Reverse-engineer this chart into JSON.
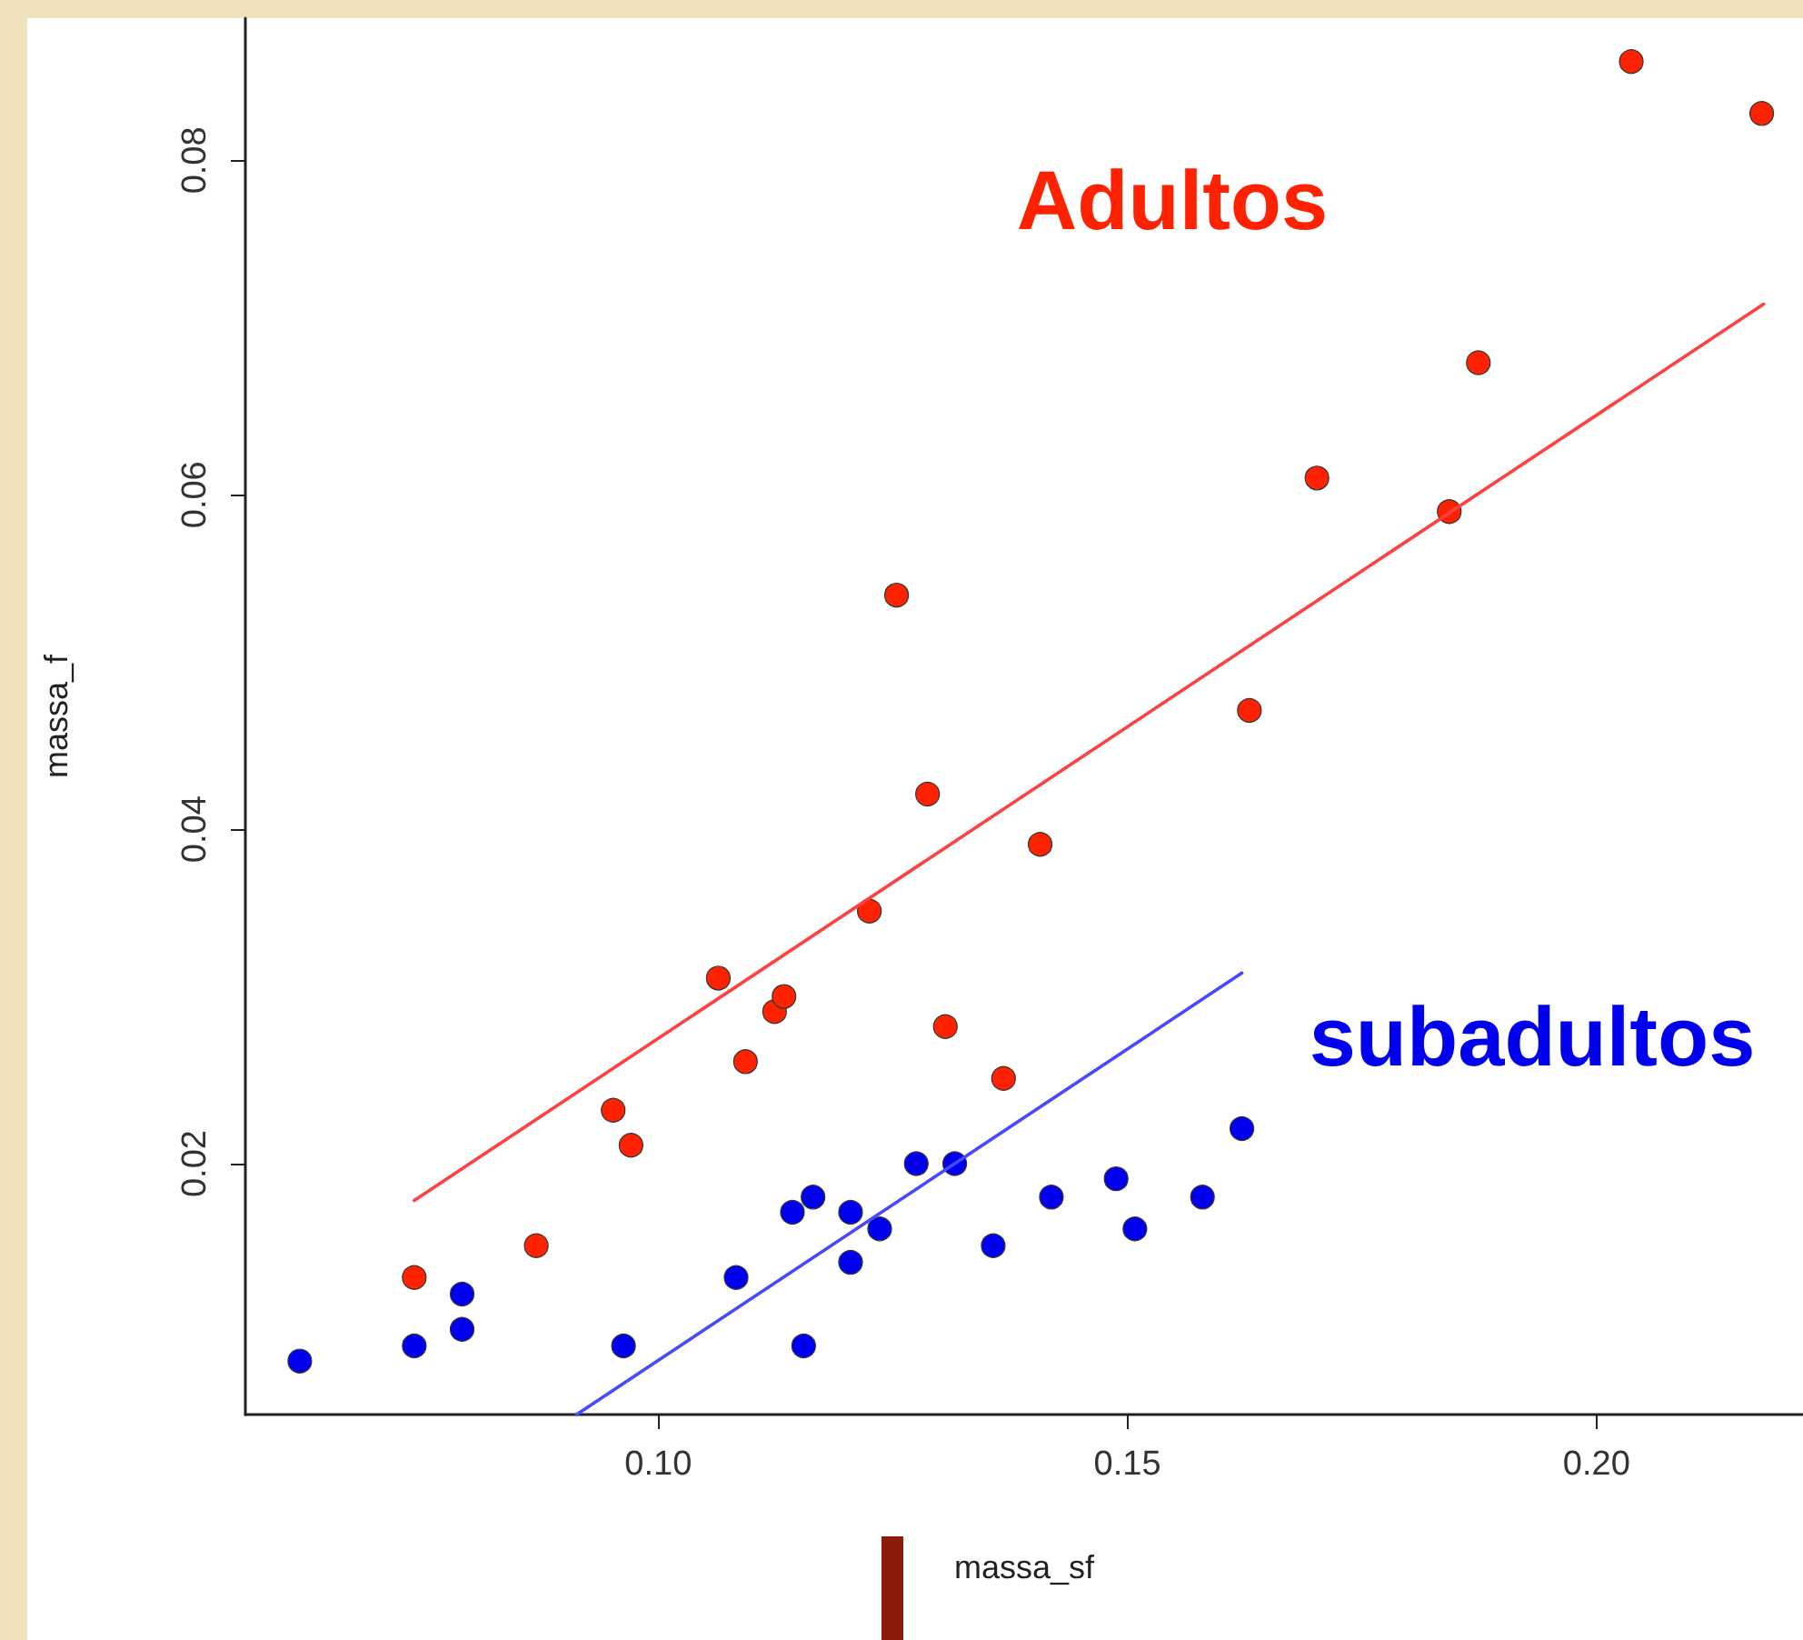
{
  "chart_data": {
    "type": "scatter",
    "xlabel": "massa_sf",
    "ylabel": "massa_f",
    "xlim": [
      0.056,
      0.222
    ],
    "ylim": [
      0.005,
      0.0885
    ],
    "xticks": [
      {
        "value": 0.1,
        "label": "0.10"
      },
      {
        "value": 0.15,
        "label": "0.15"
      },
      {
        "value": 0.2,
        "label": "0.20"
      }
    ],
    "yticks": [
      0.02,
      0.04,
      0.06,
      0.08
    ],
    "marker": "circle",
    "grid": false,
    "legend": false,
    "series": [
      {
        "name": "Adultos",
        "color": "#ff2200",
        "x": [
          0.074,
          0.087,
          0.0952,
          0.0971,
          0.1064,
          0.1093,
          0.1124,
          0.1134,
          0.1225,
          0.1254,
          0.1287,
          0.1306,
          0.1368,
          0.1407,
          0.163,
          0.1702,
          0.1843,
          0.1874,
          0.2037,
          0.2176
        ],
        "values": [
          0.0132,
          0.0151,
          0.0232,
          0.0211,
          0.0311,
          0.0261,
          0.0291,
          0.03,
          0.0351,
          0.054,
          0.0421,
          0.0282,
          0.0251,
          0.0391,
          0.0471,
          0.061,
          0.059,
          0.0679,
          0.0859,
          0.0828
        ]
      },
      {
        "name": "subadultos",
        "color": "#0000ee",
        "x": [
          0.0618,
          0.074,
          0.0791,
          0.0791,
          0.0963,
          0.1083,
          0.1155,
          0.1143,
          0.1165,
          0.1205,
          0.1205,
          0.1236,
          0.1275,
          0.1316,
          0.1357,
          0.1419,
          0.1488,
          0.1508,
          0.158,
          0.1622
        ],
        "values": [
          0.0082,
          0.0091,
          0.0122,
          0.0101,
          0.0091,
          0.0132,
          0.0091,
          0.0171,
          0.018,
          0.0171,
          0.0141,
          0.0161,
          0.02,
          0.02,
          0.0151,
          0.018,
          0.0191,
          0.0161,
          0.018,
          0.0221
        ]
      },
      {
        "type": "line",
        "marker": "none",
        "color": "#ff4040",
        "x": [
          0.074,
          0.2178
        ],
        "values": [
          0.0178,
          0.0714
        ]
      },
      {
        "type": "line",
        "marker": "none",
        "color": "#4848ff",
        "x": [
          0.0913,
          0.1622
        ],
        "values": [
          0.005,
          0.0314
        ]
      }
    ]
  }
}
